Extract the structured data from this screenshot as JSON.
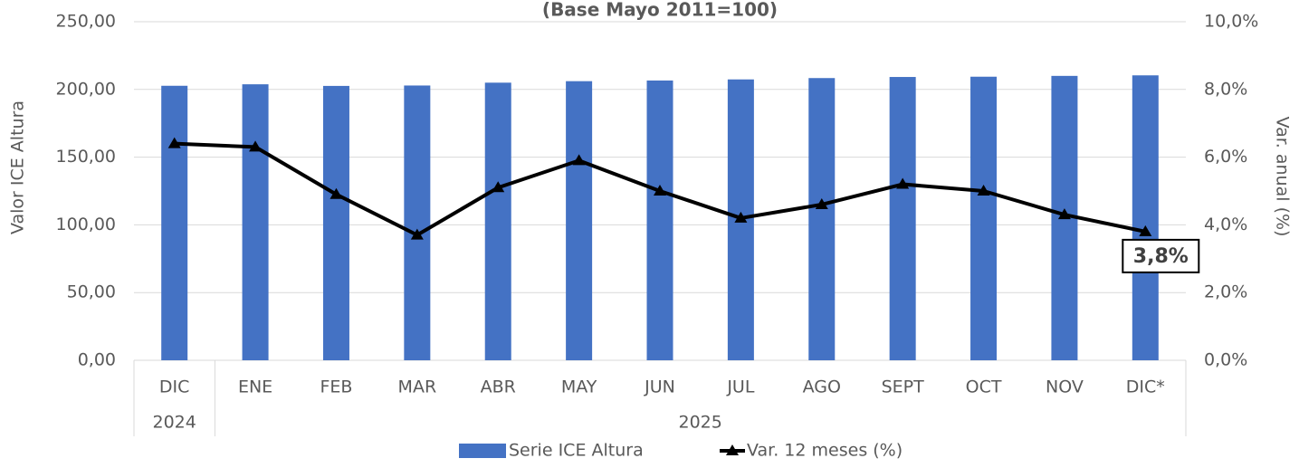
{
  "chart_data": {
    "type": "bar_line",
    "title": "(Base Mayo 2011=100)",
    "categories": [
      "DIC",
      "ENE",
      "FEB",
      "MAR",
      "ABR",
      "MAY",
      "JUN",
      "JUL",
      "AGO",
      "SEPT",
      "OCT",
      "NOV",
      "DIC*"
    ],
    "year_labels": [
      "2024",
      "2025",
      null,
      null,
      null,
      null,
      null,
      null,
      null,
      null,
      null,
      null,
      null
    ],
    "y_label": "Valor ICE Altura",
    "y2_label": "Var. anual (%)",
    "ylim": [
      0,
      250
    ],
    "yticks": [
      {
        "value": 0,
        "label": "0,00"
      },
      {
        "value": 50,
        "label": "50,00"
      },
      {
        "value": 100,
        "label": "100,00"
      },
      {
        "value": 150,
        "label": "150,00"
      },
      {
        "value": 200,
        "label": "200,00"
      },
      {
        "value": 250,
        "label": "250,00"
      }
    ],
    "y2lim": [
      0,
      10
    ],
    "y2ticks": [
      {
        "value": 0,
        "label": "0,0%"
      },
      {
        "value": 2,
        "label": "2,0%"
      },
      {
        "value": 4,
        "label": "4,0%"
      },
      {
        "value": 6,
        "label": "6,0%"
      },
      {
        "value": 8,
        "label": "8,0%"
      },
      {
        "value": 10,
        "label": "10,0%"
      }
    ],
    "grid": true,
    "legend": "bottom",
    "series": [
      {
        "name": "Serie ICE Altura",
        "type": "bar",
        "color": "#4472c4",
        "values": [
          202.7,
          203.8,
          202.6,
          202.9,
          205.0,
          206.1,
          206.6,
          207.4,
          208.4,
          209.2,
          209.4,
          210.0,
          210.4
        ]
      },
      {
        "name": "Var. 12 meses (%)",
        "type": "line",
        "axis": "y2",
        "color": "#000000",
        "values": [
          6.4,
          6.3,
          4.9,
          3.7,
          5.1,
          5.9,
          5.0,
          4.2,
          4.6,
          5.2,
          5.0,
          4.3,
          3.8
        ]
      }
    ],
    "annotations": [
      {
        "text": "3,8%",
        "series": 1,
        "index": 12
      }
    ]
  }
}
